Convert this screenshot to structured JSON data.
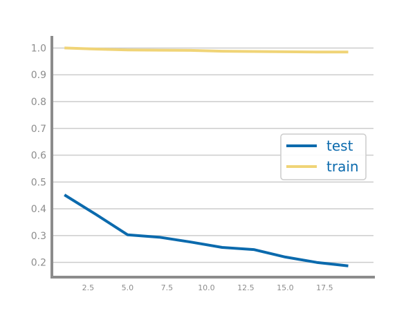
{
  "chart_data": {
    "type": "line",
    "title": "",
    "xlabel": "",
    "ylabel": "",
    "xlim": [
      0.2,
      20.6
    ],
    "ylim": [
      0.145,
      1.045
    ],
    "x_ticks": [
      2.5,
      5.0,
      7.5,
      10.0,
      12.5,
      15.0,
      17.5
    ],
    "x_tick_labels": [
      "2.5",
      "5.0",
      "7.5",
      "10.0",
      "12.5",
      "15.0",
      "17.5"
    ],
    "y_ticks": [
      0.2,
      0.3,
      0.4,
      0.5,
      0.6,
      0.7,
      0.8,
      0.9,
      1.0
    ],
    "y_tick_labels": [
      "0.2",
      "0.3",
      "0.4",
      "0.5",
      "0.6",
      "0.7",
      "0.8",
      "0.9",
      "1.0"
    ],
    "grid": "horizontal",
    "legend_position": "center-right",
    "x": [
      1,
      3,
      5,
      7,
      9,
      11,
      13,
      15,
      17,
      19
    ],
    "series": [
      {
        "name": "test",
        "color": "#0b6aad",
        "values": [
          0.452,
          0.379,
          0.303,
          0.294,
          0.276,
          0.256,
          0.248,
          0.22,
          0.2,
          0.187
        ]
      },
      {
        "name": "train",
        "color": "#f0d477",
        "values": [
          1.0,
          0.996,
          0.993,
          0.992,
          0.991,
          0.988,
          0.987,
          0.986,
          0.985,
          0.985
        ]
      }
    ]
  }
}
